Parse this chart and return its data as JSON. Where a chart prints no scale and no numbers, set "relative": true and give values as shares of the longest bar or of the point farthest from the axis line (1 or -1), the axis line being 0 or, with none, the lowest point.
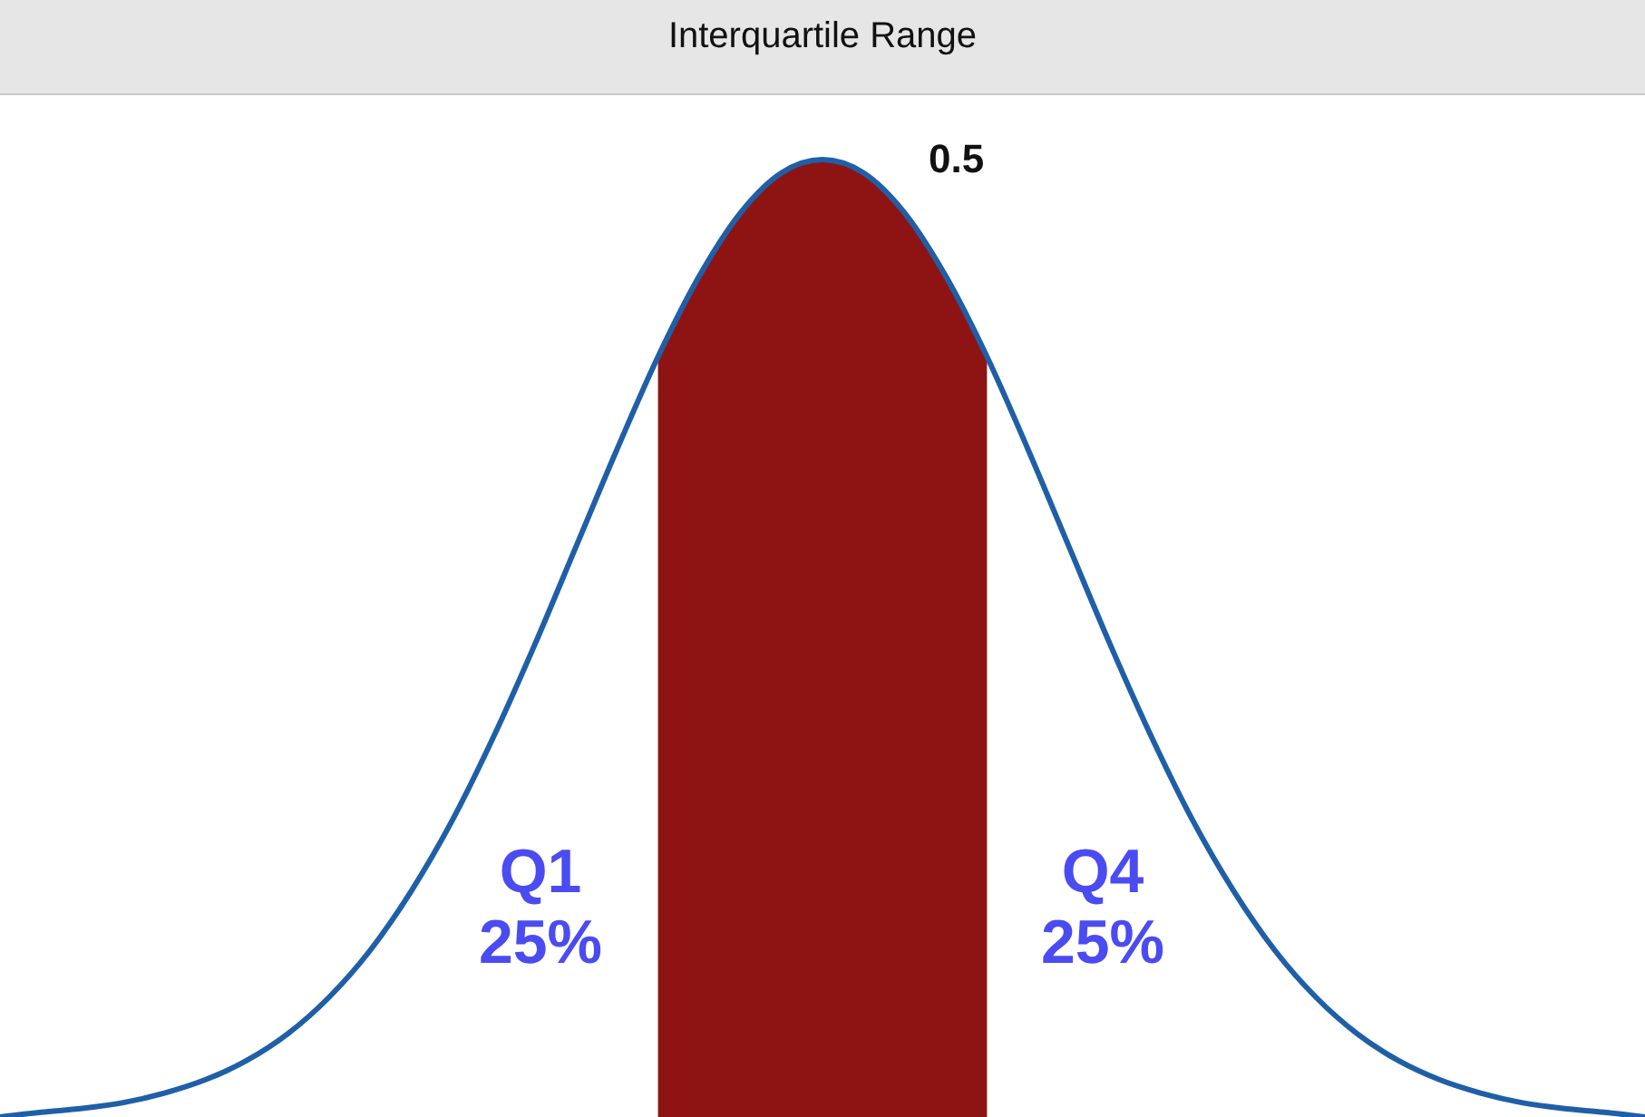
{
  "chart_data": {
    "type": "line",
    "title": "Interquartile Range",
    "relative": true,
    "categories": [
      null,
      null,
      null,
      null,
      null,
      null,
      null,
      null,
      null,
      null,
      null,
      null,
      null,
      null,
      null,
      null,
      null,
      null,
      null,
      null,
      null,
      null,
      null,
      null,
      null,
      null,
      null,
      null,
      null,
      null,
      null,
      null,
      null,
      null,
      null,
      null,
      null,
      null,
      null,
      null,
      null
    ],
    "series": [
      {
        "type": "area",
        "color": "#8e1414",
        "values": [
          null,
          null,
          null,
          null,
          null,
          null,
          null,
          null,
          null,
          null,
          null,
          null,
          null,
          null,
          null,
          null,
          0.794,
          0.878,
          0.944,
          0.986,
          1,
          0.986,
          0.944,
          0.878,
          0.794,
          null,
          null,
          null,
          null,
          null,
          null,
          null,
          null,
          null,
          null,
          null,
          null,
          null,
          null,
          null,
          null
        ]
      },
      {
        "color": "#1f5fa8",
        "values": [
          0,
          0.005,
          0.009,
          0.015,
          0.025,
          0.039,
          0.059,
          0.087,
          0.125,
          0.174,
          0.236,
          0.31,
          0.397,
          0.493,
          0.595,
          0.697,
          0.794,
          0.878,
          0.944,
          0.986,
          1,
          0.986,
          0.944,
          0.878,
          0.794,
          0.697,
          0.595,
          0.493,
          0.397,
          0.31,
          0.236,
          0.174,
          0.125,
          0.087,
          0.059,
          0.039,
          0.025,
          0.015,
          0.009,
          0.005,
          0
        ]
      }
    ],
    "annotations": [
      "0.5",
      "Q1\n25%",
      "Q4\n25%"
    ]
  }
}
